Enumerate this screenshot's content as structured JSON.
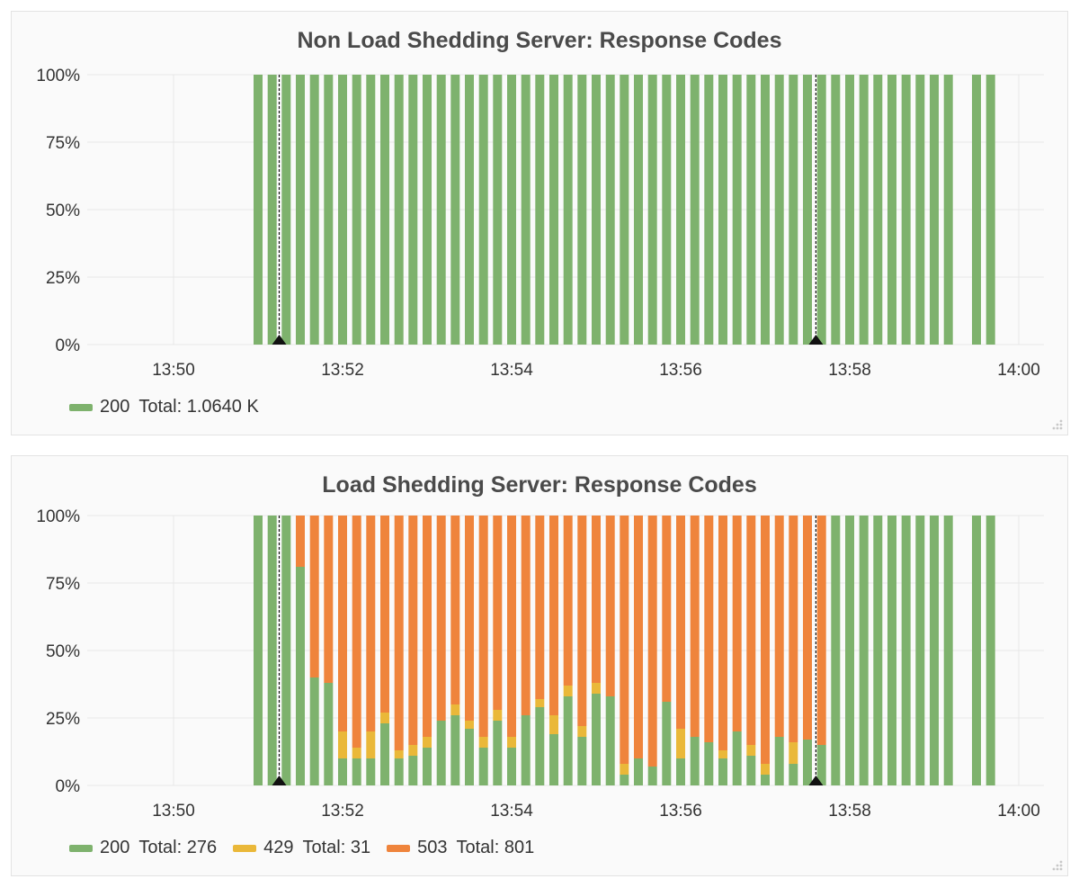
{
  "colors": {
    "code_200": "#7eb26d",
    "code_429": "#eab839",
    "code_503": "#ef843c",
    "grid": "#e8e8e8",
    "marker": "#111111"
  },
  "chart_data": [
    {
      "type": "bar",
      "stacked": true,
      "title": "Non Load Shedding Server: Response Codes",
      "x_tick_labels": [
        "13:50",
        "13:52",
        "13:54",
        "13:56",
        "13:58",
        "14:00"
      ],
      "y_tick_labels": [
        "100%",
        "75%",
        "50%",
        "25%",
        "0%"
      ],
      "ylim": [
        0,
        100
      ],
      "grid": true,
      "legend_position": "bottom-left",
      "annotations_at_minute": [
        1.25,
        7.6
      ],
      "bar_minutes": [
        1.0,
        1.167,
        1.333,
        1.5,
        1.667,
        1.833,
        2.0,
        2.167,
        2.333,
        2.5,
        2.667,
        2.833,
        3.0,
        3.167,
        3.333,
        3.5,
        3.667,
        3.833,
        4.0,
        4.167,
        4.333,
        4.5,
        4.667,
        4.833,
        5.0,
        5.167,
        5.333,
        5.5,
        5.667,
        5.833,
        6.0,
        6.167,
        6.333,
        6.5,
        6.667,
        6.833,
        7.0,
        7.167,
        7.333,
        7.5,
        7.667,
        7.833,
        8.0,
        8.167,
        8.333,
        8.5,
        8.667,
        8.833,
        9.0,
        9.167,
        9.5,
        9.667
      ],
      "series": [
        {
          "name": "200",
          "color": "#7eb26d",
          "values": [
            100,
            100,
            100,
            100,
            100,
            100,
            100,
            100,
            100,
            100,
            100,
            100,
            100,
            100,
            100,
            100,
            100,
            100,
            100,
            100,
            100,
            100,
            100,
            100,
            100,
            100,
            100,
            100,
            100,
            100,
            100,
            100,
            100,
            100,
            100,
            100,
            100,
            100,
            100,
            100,
            100,
            100,
            100,
            100,
            100,
            100,
            100,
            100,
            100,
            100,
            100,
            100
          ]
        }
      ],
      "legend": [
        {
          "label": "200",
          "total": "Total: 1.0640 K",
          "color": "#7eb26d"
        }
      ]
    },
    {
      "type": "bar",
      "stacked": true,
      "title": "Load Shedding Server: Response Codes",
      "x_tick_labels": [
        "13:50",
        "13:52",
        "13:54",
        "13:56",
        "13:58",
        "14:00"
      ],
      "y_tick_labels": [
        "100%",
        "75%",
        "50%",
        "25%",
        "0%"
      ],
      "ylim": [
        0,
        100
      ],
      "grid": true,
      "legend_position": "bottom-left",
      "annotations_at_minute": [
        1.25,
        7.6
      ],
      "bar_minutes": [
        1.0,
        1.167,
        1.333,
        1.5,
        1.667,
        1.833,
        2.0,
        2.167,
        2.333,
        2.5,
        2.667,
        2.833,
        3.0,
        3.167,
        3.333,
        3.5,
        3.667,
        3.833,
        4.0,
        4.167,
        4.333,
        4.5,
        4.667,
        4.833,
        5.0,
        5.167,
        5.333,
        5.5,
        5.667,
        5.833,
        6.0,
        6.167,
        6.333,
        6.5,
        6.667,
        6.833,
        7.0,
        7.167,
        7.333,
        7.5,
        7.667,
        7.833,
        8.0,
        8.167,
        8.333,
        8.5,
        8.667,
        8.833,
        9.0,
        9.167,
        9.5,
        9.667
      ],
      "series": [
        {
          "name": "200",
          "color": "#7eb26d",
          "values": [
            100,
            100,
            100,
            81,
            40,
            38,
            10,
            10,
            10,
            23,
            10,
            11,
            14,
            24,
            26,
            21,
            14,
            24,
            14,
            26,
            29,
            19,
            33,
            18,
            34,
            33,
            4,
            10,
            7,
            31,
            10,
            18,
            16,
            10,
            20,
            11,
            4,
            18,
            8,
            17,
            15,
            100,
            100,
            100,
            100,
            100,
            100,
            100,
            100,
            100,
            100,
            100
          ]
        },
        {
          "name": "429",
          "color": "#eab839",
          "values": [
            0,
            0,
            0,
            0,
            0,
            0,
            10,
            4,
            10,
            4,
            3,
            4,
            4,
            0,
            4,
            3,
            4,
            4,
            4,
            0,
            3,
            7,
            4,
            4,
            4,
            0,
            4,
            0,
            0,
            0,
            11,
            0,
            0,
            3,
            0,
            4,
            4,
            0,
            8,
            0,
            0,
            0,
            0,
            0,
            0,
            0,
            0,
            0,
            0,
            0,
            0,
            0
          ]
        },
        {
          "name": "503",
          "color": "#ef843c",
          "values": [
            0,
            0,
            0,
            19,
            60,
            62,
            80,
            86,
            80,
            73,
            87,
            85,
            82,
            76,
            70,
            76,
            82,
            72,
            82,
            74,
            68,
            74,
            63,
            78,
            62,
            67,
            92,
            90,
            93,
            69,
            79,
            82,
            84,
            87,
            80,
            85,
            92,
            82,
            84,
            83,
            85,
            0,
            0,
            0,
            0,
            0,
            0,
            0,
            0,
            0,
            0,
            0
          ]
        }
      ],
      "legend": [
        {
          "label": "200",
          "total": "Total: 276",
          "color": "#7eb26d"
        },
        {
          "label": "429",
          "total": "Total: 31",
          "color": "#eab839"
        },
        {
          "label": "503",
          "total": "Total: 801",
          "color": "#ef843c"
        }
      ]
    }
  ]
}
